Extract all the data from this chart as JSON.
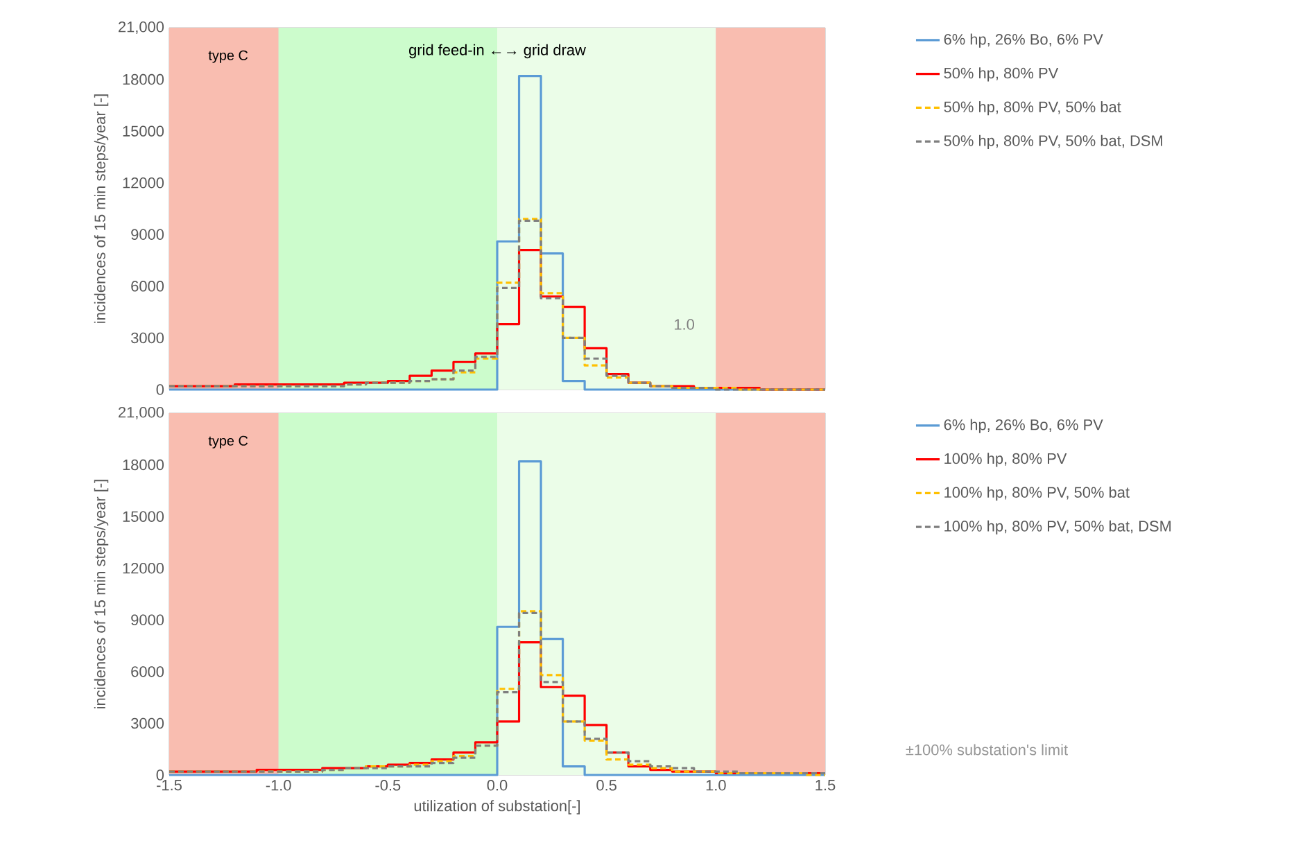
{
  "chart_data": [
    {
      "type": "histogram",
      "ylabel": "incidences of 15 min steps/year [-]",
      "tick_labels": "y",
      "grid": true,
      "legend": "right",
      "bins": [
        -1.5,
        -1.4,
        -1.3,
        -1.2,
        -1.1,
        -1.0,
        -0.9,
        -0.8,
        -0.7,
        -0.6,
        -0.5,
        -0.4,
        -0.3,
        -0.2,
        -0.1,
        0.0,
        0.1,
        0.2,
        0.3,
        0.4,
        0.5,
        0.6,
        0.7,
        0.8,
        0.9,
        1.0,
        1.1,
        1.2,
        1.3,
        1.4,
        1.5
      ],
      "series": [
        {
          "name": "6% hp, 26% Bo, 6% PV",
          "color": "#5b9bd5",
          "line_style": "solid",
          "values": [
            0,
            0,
            0,
            0,
            0,
            0,
            0,
            0,
            0,
            0,
            0,
            0,
            0,
            0,
            0,
            8600,
            18200,
            7900,
            500,
            0,
            0,
            0,
            0,
            0,
            0,
            0,
            0,
            0,
            0,
            0
          ]
        },
        {
          "name": "50% hp, 80% PV",
          "color": "#ff0000",
          "line_style": "solid",
          "values": [
            200,
            200,
            200,
            300,
            300,
            300,
            300,
            300,
            400,
            400,
            500,
            800,
            1100,
            1600,
            2100,
            3800,
            8100,
            5400,
            4800,
            2400,
            900,
            400,
            200,
            200,
            100,
            100,
            100,
            0,
            0,
            0
          ]
        },
        {
          "name": "50% hp, 80% PV, 50% bat",
          "color": "#ffc000",
          "line_style": "dashed",
          "values": [
            200,
            200,
            200,
            200,
            200,
            200,
            200,
            200,
            300,
            400,
            400,
            500,
            600,
            1000,
            1800,
            6200,
            9900,
            5600,
            3000,
            1400,
            700,
            400,
            200,
            100,
            100,
            100,
            0,
            0,
            0,
            0
          ]
        },
        {
          "name": "50% hp, 80% PV, 50% bat, DSM",
          "color": "#7f7f7f",
          "line_style": "dashed",
          "values": [
            200,
            200,
            200,
            200,
            200,
            200,
            200,
            200,
            300,
            400,
            400,
            500,
            600,
            1100,
            1900,
            5900,
            9800,
            5300,
            3000,
            1800,
            800,
            400,
            200,
            100,
            100,
            0,
            0,
            0,
            0,
            0
          ]
        }
      ],
      "xlim": [
        -1.5,
        1.5
      ],
      "ylim": [
        0,
        21000
      ],
      "xticks": [
        -1.5,
        -1.0,
        -0.5,
        0.0,
        0.5,
        1.0,
        1.5
      ],
      "yticks": [
        0,
        3000,
        6000,
        9000,
        12000,
        15000,
        18000,
        {
          "value": 21000,
          "label": "21,000"
        }
      ],
      "bands": [
        {
          "axis": "x",
          "from": -1.5,
          "to": -1.0,
          "color": "#f9bdb0"
        },
        {
          "axis": "x",
          "from": -1.0,
          "to": 0.0,
          "color": "#ccfccc"
        },
        {
          "axis": "x",
          "from": 0.0,
          "to": 1.0,
          "color": "#ebfde8"
        },
        {
          "axis": "x",
          "from": 1.0,
          "to": 1.5,
          "color": "#f9bdb0"
        }
      ],
      "annotations": [
        "type C",
        "grid feed-in ←→ grid draw",
        "1.0"
      ]
    },
    {
      "type": "histogram",
      "ylabel": "incidences of 15 min steps/year [-]",
      "xlabel": "utilization of substation[-]",
      "grid": true,
      "legend": "right",
      "bins": [
        -1.5,
        -1.4,
        -1.3,
        -1.2,
        -1.1,
        -1.0,
        -0.9,
        -0.8,
        -0.7,
        -0.6,
        -0.5,
        -0.4,
        -0.3,
        -0.2,
        -0.1,
        0.0,
        0.1,
        0.2,
        0.3,
        0.4,
        0.5,
        0.6,
        0.7,
        0.8,
        0.9,
        1.0,
        1.1,
        1.2,
        1.3,
        1.4,
        1.5
      ],
      "series": [
        {
          "name": "6% hp, 26% Bo, 6% PV",
          "color": "#5b9bd5",
          "line_style": "solid",
          "values": [
            0,
            0,
            0,
            0,
            0,
            0,
            0,
            0,
            0,
            0,
            0,
            0,
            0,
            0,
            0,
            8600,
            18200,
            7900,
            500,
            0,
            0,
            0,
            0,
            0,
            0,
            0,
            0,
            0,
            0,
            0
          ]
        },
        {
          "name": "100% hp, 80% PV",
          "color": "#ff0000",
          "line_style": "solid",
          "values": [
            200,
            200,
            200,
            200,
            300,
            300,
            300,
            400,
            400,
            500,
            600,
            700,
            900,
            1300,
            1900,
            3100,
            7700,
            5100,
            4600,
            2900,
            1300,
            500,
            300,
            200,
            200,
            100,
            100,
            100,
            100,
            100
          ]
        },
        {
          "name": "100% hp, 80% PV, 50% bat",
          "color": "#ffc000",
          "line_style": "dashed",
          "values": [
            200,
            200,
            200,
            200,
            200,
            200,
            200,
            300,
            400,
            500,
            500,
            600,
            800,
            1100,
            1700,
            5000,
            9500,
            5800,
            3100,
            2000,
            900,
            600,
            400,
            200,
            200,
            100,
            100,
            100,
            100,
            0
          ]
        },
        {
          "name": "100% hp, 80% PV, 50% bat, DSM",
          "color": "#7f7f7f",
          "line_style": "dashed",
          "values": [
            200,
            200,
            200,
            200,
            200,
            200,
            200,
            300,
            400,
            400,
            500,
            500,
            700,
            1000,
            1700,
            4800,
            9400,
            5400,
            3100,
            2100,
            1300,
            800,
            500,
            400,
            200,
            200,
            100,
            100,
            100,
            100
          ]
        }
      ],
      "xlim": [
        -1.5,
        1.5
      ],
      "ylim": [
        0,
        21000
      ],
      "xticks": [
        -1.5,
        {
          "value": -1.0,
          "label": "-1.0"
        },
        -0.5,
        {
          "value": 0.0,
          "label": "0.0"
        },
        0.5,
        {
          "value": 1.0,
          "label": "1.0"
        },
        1.5
      ],
      "yticks": [
        0,
        3000,
        6000,
        9000,
        12000,
        15000,
        18000,
        {
          "value": 21000,
          "label": "21,000"
        }
      ],
      "bands": [
        {
          "axis": "x",
          "from": -1.5,
          "to": -1.0,
          "color": "#f9bdb0"
        },
        {
          "axis": "x",
          "from": -1.0,
          "to": 0.0,
          "color": "#ccfccc"
        },
        {
          "axis": "x",
          "from": 0.0,
          "to": 1.0,
          "color": "#ebfde8"
        },
        {
          "axis": "x",
          "from": 1.0,
          "to": 1.5,
          "color": "#f9bdb0"
        }
      ],
      "annotations": [
        "type C",
        "±100% substation's limit"
      ]
    }
  ]
}
